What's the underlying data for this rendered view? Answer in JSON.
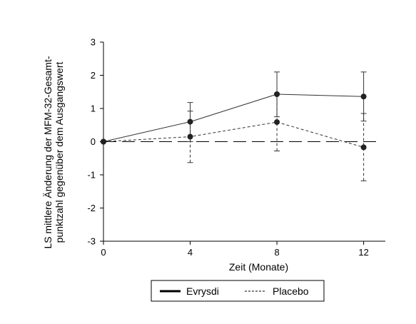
{
  "chart_data": {
    "type": "line",
    "xlabel": "Zeit (Monate)",
    "ylabel_lines": [
      "LS mittlere Änderung der MFM-32-Gesamt-",
      "punktzahl  gegenüber dem Ausgangswert"
    ],
    "x": [
      0,
      4,
      8,
      12
    ],
    "xlim": [
      0,
      13
    ],
    "ylim": [
      -3,
      3
    ],
    "xticks": [
      "0",
      "4",
      "8",
      "12"
    ],
    "yticks": [
      "3",
      "2",
      "1",
      "0",
      "-1",
      "-2",
      "-3"
    ],
    "reference_line_y": 0,
    "series": [
      {
        "name": "Evrysdi",
        "style": "solid",
        "values": [
          0,
          0.6,
          1.43,
          1.36
        ],
        "error_low": [
          0,
          0.0,
          0.75,
          0.62
        ],
        "error_high": [
          0,
          1.18,
          2.1,
          2.1
        ]
      },
      {
        "name": "Placebo",
        "style": "dashed",
        "values": [
          0,
          0.15,
          0.59,
          -0.17
        ],
        "error_low": [
          0,
          -0.63,
          -0.28,
          -1.18
        ],
        "error_high": [
          0,
          0.92,
          1.45,
          0.85
        ]
      }
    ],
    "legend": {
      "placement": "bottom",
      "entries": [
        "Evrysdi",
        "Placebo"
      ]
    },
    "colors": {
      "line": "#333333",
      "marker": "#222222",
      "axis": "#000000"
    }
  }
}
